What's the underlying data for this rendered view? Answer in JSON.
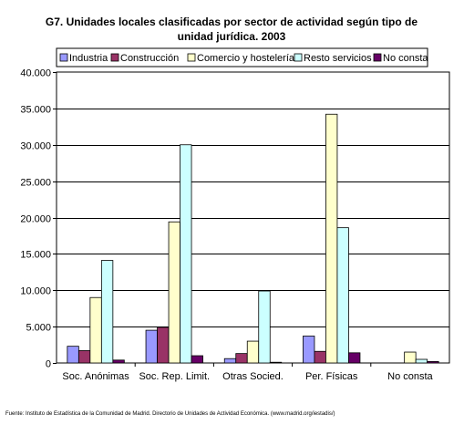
{
  "chart_data": {
    "type": "bar",
    "title": [
      "G7. Unidades locales clasificadas por sector de actividad según tipo de",
      "unidad jurídica. 2003"
    ],
    "xlabel": "",
    "ylabel": "",
    "categories": [
      "Soc. Anónimas",
      "Soc. Rep. Limit.",
      "Otras Socied.",
      "Per. Físicas",
      "No consta"
    ],
    "series": [
      {
        "name": "Industria",
        "color": "#9999ff",
        "values": [
          2300,
          4500,
          600,
          3700,
          0
        ]
      },
      {
        "name": "Construcción",
        "color": "#993366",
        "values": [
          1700,
          4900,
          1300,
          1600,
          0
        ]
      },
      {
        "name": "Comercio y hostelería",
        "color": "#ffffcc",
        "values": [
          9000,
          19400,
          3000,
          34200,
          1500
        ]
      },
      {
        "name": "Resto servicios",
        "color": "#ccffff",
        "values": [
          14100,
          30000,
          9900,
          18600,
          500
        ]
      },
      {
        "name": "No consta",
        "color": "#660066",
        "values": [
          400,
          1000,
          100,
          1400,
          200
        ]
      }
    ],
    "ylim": [
      0,
      40000
    ],
    "yticks": [
      0,
      5000,
      10000,
      15000,
      20000,
      25000,
      30000,
      35000,
      40000
    ],
    "ytick_labels": [
      "0",
      "5.000",
      "10.000",
      "15.000",
      "20.000",
      "25.000",
      "30.000",
      "35.000",
      "40.000"
    ],
    "grid": true,
    "legend_position": "top"
  },
  "source": "Fuente: Instituto de Estadística de la Comunidad de Madrid. Directorio de Unidades de Actividad Económica. (www.madrid.org/iestadis/)"
}
